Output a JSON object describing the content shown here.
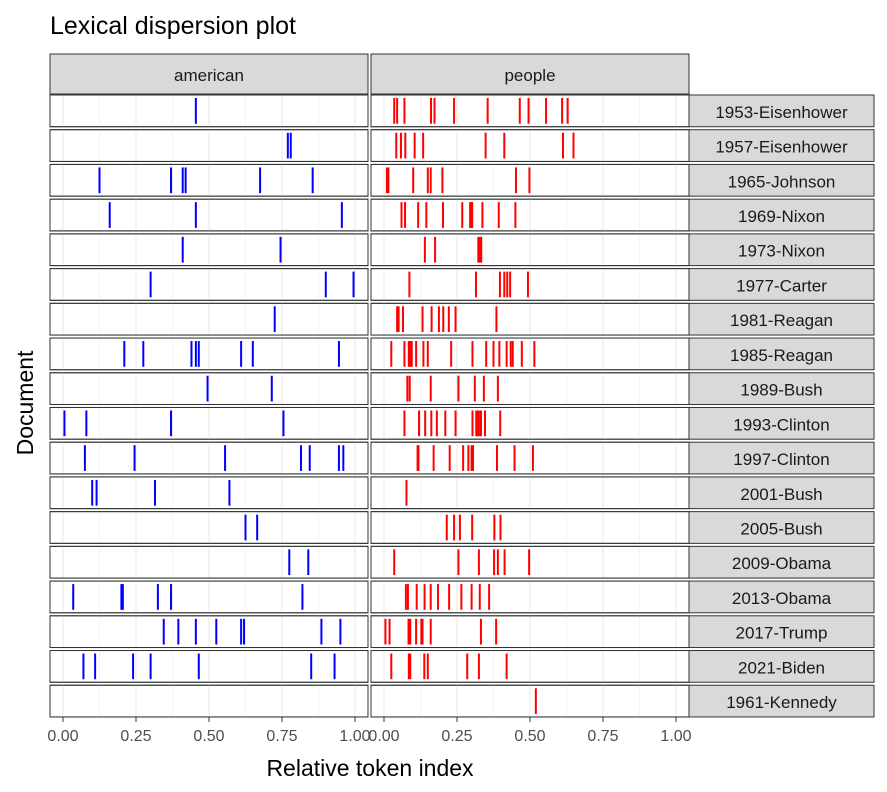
{
  "chart_data": {
    "type": "lexical-dispersion",
    "title": "Lexical dispersion plot",
    "xlabel": "Relative token index",
    "ylabel": "Document",
    "xlim": [
      0,
      1
    ],
    "x_ticks": [
      "0.00",
      "0.25",
      "0.50",
      "0.75",
      "1.00"
    ],
    "x_tick_values": [
      0,
      0.25,
      0.5,
      0.75,
      1.0
    ],
    "grid": true,
    "panels": [
      {
        "name": "american",
        "color": "#0000ff"
      },
      {
        "name": "people",
        "color": "#ff0000"
      }
    ],
    "documents": [
      {
        "name": "1953-Eisenhower",
        "american": [
          0.455
        ],
        "people": [
          0.035,
          0.045,
          0.07,
          0.161,
          0.173,
          0.24,
          0.355,
          0.465,
          0.495,
          0.555,
          0.61,
          0.629
        ]
      },
      {
        "name": "1957-Eisenhower",
        "american": [
          0.77,
          0.78
        ],
        "people": [
          0.042,
          0.058,
          0.073,
          0.105,
          0.134,
          0.348,
          0.412,
          0.613,
          0.649
        ]
      },
      {
        "name": "1965-Johnson",
        "american": [
          0.125,
          0.37,
          0.41,
          0.42,
          0.675,
          0.855
        ],
        "people": [
          0.01,
          0.015,
          0.1,
          0.15,
          0.16,
          0.2,
          0.452,
          0.498
        ]
      },
      {
        "name": "1969-Nixon",
        "american": [
          0.16,
          0.455,
          0.955
        ],
        "people": [
          0.06,
          0.072,
          0.117,
          0.145,
          0.202,
          0.268,
          0.295,
          0.297,
          0.3,
          0.302,
          0.337,
          0.393,
          0.45
        ]
      },
      {
        "name": "1973-Nixon",
        "american": [
          0.41,
          0.745
        ],
        "people": [
          0.14,
          0.175,
          0.323,
          0.328,
          0.333
        ]
      },
      {
        "name": "1977-Carter",
        "american": [
          0.3,
          0.9,
          0.995
        ],
        "people": [
          0.087,
          0.315,
          0.397,
          0.412,
          0.422,
          0.432,
          0.493
        ]
      },
      {
        "name": "1981-Reagan",
        "american": [
          0.725
        ],
        "people": [
          0.045,
          0.05,
          0.065,
          0.132,
          0.163,
          0.188,
          0.203,
          0.222,
          0.245,
          0.385
        ]
      },
      {
        "name": "1985-Reagan",
        "american": [
          0.21,
          0.275,
          0.44,
          0.455,
          0.465,
          0.61,
          0.65,
          0.945
        ],
        "people": [
          0.025,
          0.07,
          0.085,
          0.09,
          0.095,
          0.11,
          0.135,
          0.15,
          0.23,
          0.303,
          0.35,
          0.375,
          0.395,
          0.42,
          0.434,
          0.441,
          0.472,
          0.515
        ]
      },
      {
        "name": "1989-Bush",
        "american": [
          0.495,
          0.715
        ],
        "people": [
          0.08,
          0.088,
          0.16,
          0.255,
          0.311,
          0.342,
          0.39
        ]
      },
      {
        "name": "1993-Clinton",
        "american": [
          0.005,
          0.08,
          0.37,
          0.755
        ],
        "people": [
          0.07,
          0.12,
          0.141,
          0.162,
          0.181,
          0.21,
          0.245,
          0.303,
          0.316,
          0.32,
          0.325,
          0.332,
          0.346,
          0.398
        ]
      },
      {
        "name": "1997-Clinton",
        "american": [
          0.075,
          0.245,
          0.555,
          0.815,
          0.845,
          0.945,
          0.96
        ],
        "people": [
          0.115,
          0.118,
          0.17,
          0.225,
          0.271,
          0.289,
          0.3,
          0.305,
          0.387,
          0.447,
          0.51
        ]
      },
      {
        "name": "2001-Bush",
        "american": [
          0.1,
          0.115,
          0.315,
          0.57
        ],
        "people": [
          0.077
        ]
      },
      {
        "name": "2005-Bush",
        "american": [
          0.625,
          0.665
        ],
        "people": [
          0.215,
          0.24,
          0.26,
          0.302,
          0.378,
          0.399
        ]
      },
      {
        "name": "2009-Obama",
        "american": [
          0.775,
          0.84
        ],
        "people": [
          0.035,
          0.255,
          0.325,
          0.377,
          0.39,
          0.413,
          0.497
        ]
      },
      {
        "name": "2013-Obama",
        "american": [
          0.035,
          0.2,
          0.205,
          0.325,
          0.37,
          0.82
        ],
        "people": [
          0.075,
          0.082,
          0.112,
          0.139,
          0.16,
          0.185,
          0.223,
          0.265,
          0.3,
          0.328,
          0.36
        ]
      },
      {
        "name": "2017-Trump",
        "american": [
          0.345,
          0.395,
          0.455,
          0.525,
          0.61,
          0.62,
          0.885,
          0.95
        ],
        "people": [
          0.005,
          0.019,
          0.084,
          0.09,
          0.11,
          0.128,
          0.132,
          0.16,
          0.332,
          0.384
        ]
      },
      {
        "name": "2021-Biden",
        "american": [
          0.07,
          0.11,
          0.24,
          0.3,
          0.465,
          0.85,
          0.93
        ],
        "people": [
          0.025,
          0.085,
          0.09,
          0.138,
          0.15,
          0.285,
          0.325,
          0.42
        ]
      },
      {
        "name": "1961-Kennedy",
        "american": [],
        "people": [
          0.52
        ]
      }
    ]
  }
}
